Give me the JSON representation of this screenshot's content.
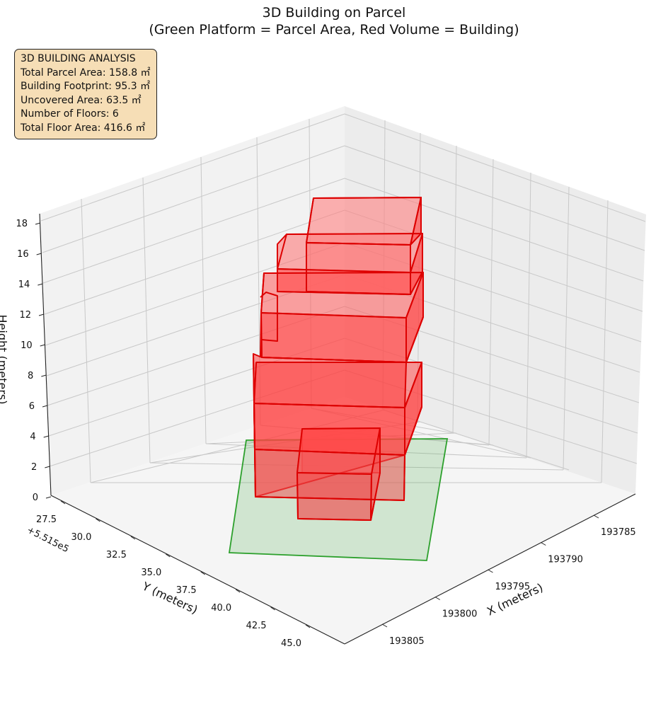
{
  "chart_data": {
    "type": "3d-bar",
    "title_line1": "3D Building on Parcel",
    "title_line2": "(Green Platform = Parcel Area, Red Volume = Building)",
    "xlabel": "X (meters)",
    "ylabel": "Y (meters)",
    "zlabel": "Height (meters)",
    "y_offset_label": "+5.515e5",
    "x_ticks": [
      "193785",
      "193790",
      "193795",
      "193800",
      "193805"
    ],
    "y_ticks": [
      "27.5",
      "30.0",
      "32.5",
      "35.0",
      "37.5",
      "40.0",
      "42.5",
      "45.0"
    ],
    "z_ticks": [
      "0",
      "2",
      "4",
      "6",
      "8",
      "10",
      "12",
      "14",
      "16",
      "18"
    ],
    "grid": true,
    "parcel_color": "#2ca02c",
    "building_color": "#ff0000",
    "info_box": {
      "heading": "3D BUILDING ANALYSIS",
      "line1": "Total Parcel Area: 158.8 ㎡",
      "line2": "Building Footprint: 95.3 ㎡",
      "line3": "Uncovered Area: 63.5 ㎡",
      "line4": "Number of Floors: 6",
      "line5": "Total Floor Area: 416.6 ㎡"
    }
  }
}
